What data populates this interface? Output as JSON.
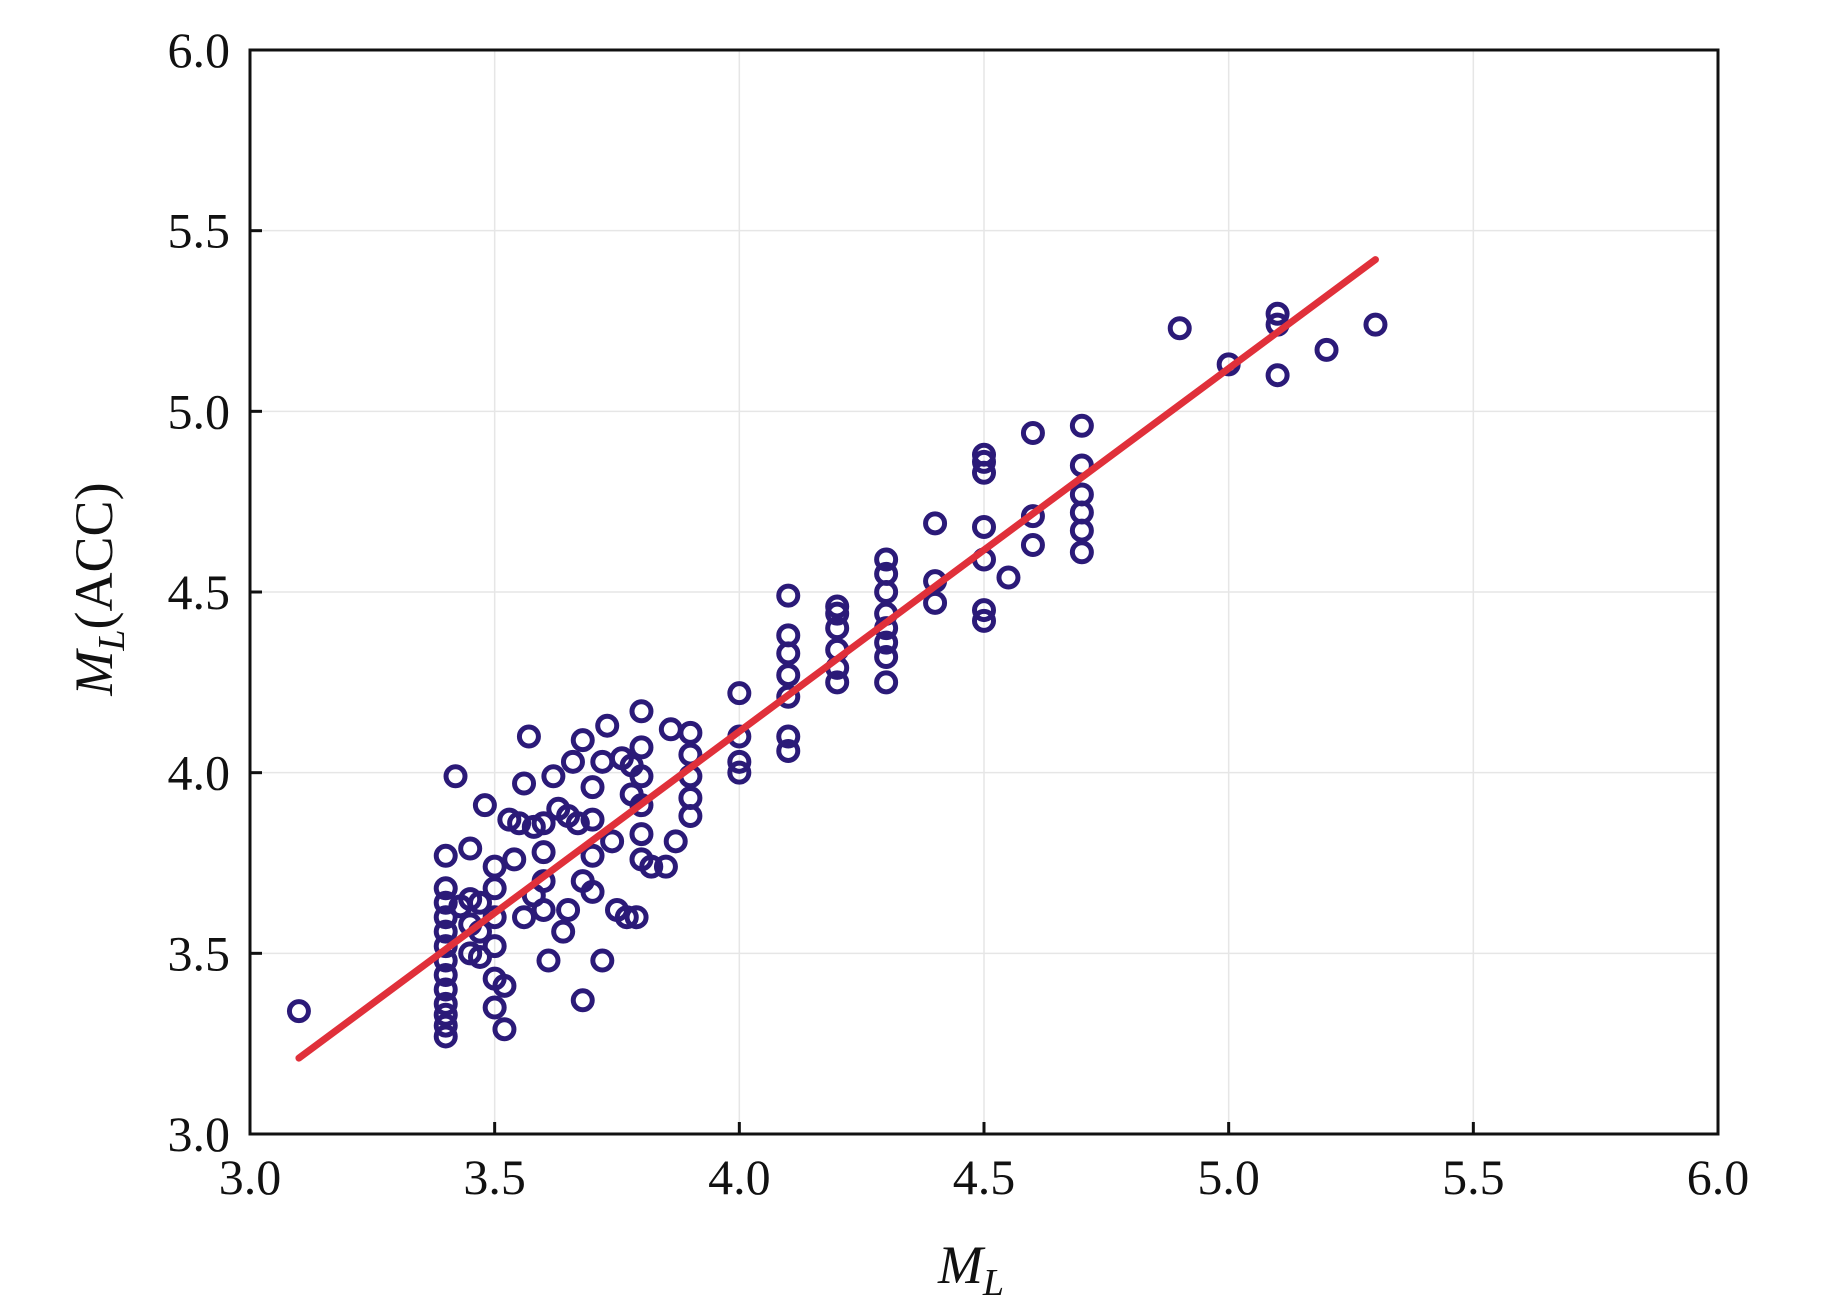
{
  "chart_data": {
    "type": "scatter",
    "xlabel": {
      "main": "M",
      "sub": "L",
      "suffix": ""
    },
    "ylabel": {
      "main": "M",
      "sub": "L",
      "suffix": "(ACC)"
    },
    "xlim": [
      3.0,
      6.0
    ],
    "ylim": [
      3.0,
      6.0
    ],
    "xticks": [
      "3.0",
      "3.5",
      "4.0",
      "4.5",
      "5.0",
      "5.5",
      "6.0"
    ],
    "yticks": [
      "3.0",
      "3.5",
      "4.0",
      "4.5",
      "5.0",
      "5.5",
      "6.0"
    ],
    "grid": true,
    "legend": "none",
    "colors": {
      "points": "#2b1a78",
      "fit_line": "#e0303a",
      "grid": "#e6e6e6",
      "axes": "#111111"
    },
    "fit_line": {
      "x": [
        3.1,
        5.3
      ],
      "y": [
        3.21,
        5.42
      ]
    },
    "points": [
      [
        3.1,
        3.34
      ],
      [
        3.4,
        3.27
      ],
      [
        3.4,
        3.3
      ],
      [
        3.4,
        3.33
      ],
      [
        3.4,
        3.36
      ],
      [
        3.4,
        3.4
      ],
      [
        3.4,
        3.44
      ],
      [
        3.4,
        3.48
      ],
      [
        3.4,
        3.52
      ],
      [
        3.4,
        3.56
      ],
      [
        3.4,
        3.6
      ],
      [
        3.4,
        3.64
      ],
      [
        3.4,
        3.68
      ],
      [
        3.4,
        3.77
      ],
      [
        3.42,
        3.99
      ],
      [
        3.43,
        3.63
      ],
      [
        3.45,
        3.5
      ],
      [
        3.45,
        3.58
      ],
      [
        3.45,
        3.65
      ],
      [
        3.45,
        3.79
      ],
      [
        3.47,
        3.49
      ],
      [
        3.47,
        3.56
      ],
      [
        3.47,
        3.64
      ],
      [
        3.48,
        3.91
      ],
      [
        3.5,
        3.35
      ],
      [
        3.5,
        3.43
      ],
      [
        3.5,
        3.52
      ],
      [
        3.5,
        3.6
      ],
      [
        3.5,
        3.68
      ],
      [
        3.5,
        3.74
      ],
      [
        3.52,
        3.29
      ],
      [
        3.52,
        3.41
      ],
      [
        3.53,
        3.87
      ],
      [
        3.54,
        3.76
      ],
      [
        3.55,
        3.86
      ],
      [
        3.56,
        3.6
      ],
      [
        3.56,
        3.97
      ],
      [
        3.57,
        4.1
      ],
      [
        3.58,
        3.66
      ],
      [
        3.58,
        3.85
      ],
      [
        3.6,
        3.62
      ],
      [
        3.6,
        3.7
      ],
      [
        3.6,
        3.78
      ],
      [
        3.6,
        3.86
      ],
      [
        3.61,
        3.48
      ],
      [
        3.62,
        3.99
      ],
      [
        3.63,
        3.9
      ],
      [
        3.64,
        3.56
      ],
      [
        3.65,
        3.62
      ],
      [
        3.65,
        3.88
      ],
      [
        3.66,
        4.03
      ],
      [
        3.67,
        3.86
      ],
      [
        3.68,
        3.37
      ],
      [
        3.68,
        3.7
      ],
      [
        3.68,
        4.09
      ],
      [
        3.7,
        3.67
      ],
      [
        3.7,
        3.77
      ],
      [
        3.7,
        3.87
      ],
      [
        3.7,
        3.96
      ],
      [
        3.72,
        3.48
      ],
      [
        3.72,
        4.03
      ],
      [
        3.73,
        4.13
      ],
      [
        3.74,
        3.81
      ],
      [
        3.75,
        3.62
      ],
      [
        3.76,
        4.04
      ],
      [
        3.77,
        3.6
      ],
      [
        3.78,
        3.94
      ],
      [
        3.78,
        4.02
      ],
      [
        3.79,
        3.6
      ],
      [
        3.8,
        3.76
      ],
      [
        3.8,
        3.83
      ],
      [
        3.8,
        3.91
      ],
      [
        3.8,
        3.99
      ],
      [
        3.8,
        4.07
      ],
      [
        3.8,
        4.17
      ],
      [
        3.82,
        3.74
      ],
      [
        3.85,
        3.74
      ],
      [
        3.86,
        4.12
      ],
      [
        3.87,
        3.81
      ],
      [
        3.9,
        3.88
      ],
      [
        3.9,
        3.93
      ],
      [
        3.9,
        3.99
      ],
      [
        3.9,
        4.05
      ],
      [
        3.9,
        4.11
      ],
      [
        4.0,
        4.0
      ],
      [
        4.0,
        4.03
      ],
      [
        4.0,
        4.1
      ],
      [
        4.0,
        4.22
      ],
      [
        4.1,
        4.06
      ],
      [
        4.1,
        4.1
      ],
      [
        4.1,
        4.21
      ],
      [
        4.1,
        4.27
      ],
      [
        4.1,
        4.33
      ],
      [
        4.1,
        4.38
      ],
      [
        4.1,
        4.49
      ],
      [
        4.2,
        4.25
      ],
      [
        4.2,
        4.29
      ],
      [
        4.2,
        4.34
      ],
      [
        4.2,
        4.4
      ],
      [
        4.2,
        4.44
      ],
      [
        4.2,
        4.46
      ],
      [
        4.3,
        4.25
      ],
      [
        4.3,
        4.32
      ],
      [
        4.3,
        4.36
      ],
      [
        4.3,
        4.4
      ],
      [
        4.3,
        4.44
      ],
      [
        4.3,
        4.5
      ],
      [
        4.3,
        4.55
      ],
      [
        4.3,
        4.59
      ],
      [
        4.4,
        4.47
      ],
      [
        4.4,
        4.53
      ],
      [
        4.4,
        4.69
      ],
      [
        4.5,
        4.42
      ],
      [
        4.5,
        4.45
      ],
      [
        4.5,
        4.59
      ],
      [
        4.5,
        4.68
      ],
      [
        4.5,
        4.83
      ],
      [
        4.5,
        4.86
      ],
      [
        4.5,
        4.88
      ],
      [
        4.55,
        4.54
      ],
      [
        4.6,
        4.63
      ],
      [
        4.6,
        4.71
      ],
      [
        4.6,
        4.94
      ],
      [
        4.7,
        4.61
      ],
      [
        4.7,
        4.67
      ],
      [
        4.7,
        4.72
      ],
      [
        4.7,
        4.77
      ],
      [
        4.7,
        4.85
      ],
      [
        4.7,
        4.96
      ],
      [
        4.9,
        5.23
      ],
      [
        5.0,
        5.13
      ],
      [
        5.1,
        5.1
      ],
      [
        5.1,
        5.24
      ],
      [
        5.1,
        5.27
      ],
      [
        5.2,
        5.17
      ],
      [
        5.3,
        5.24
      ]
    ]
  }
}
